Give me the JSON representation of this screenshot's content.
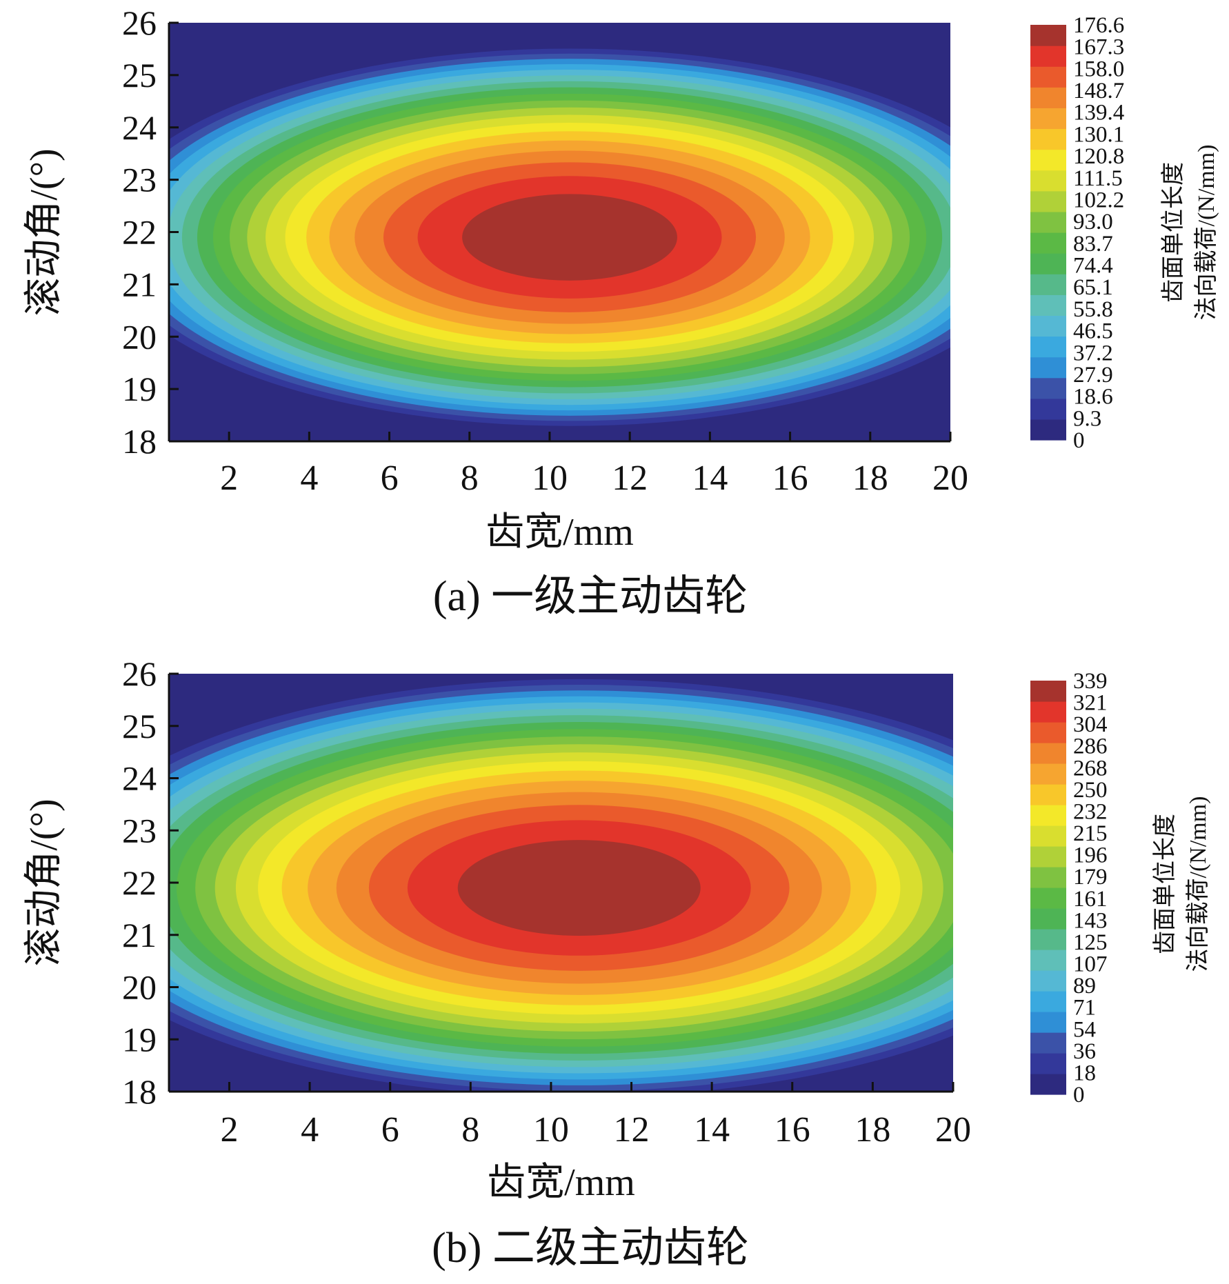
{
  "chart_data": [
    {
      "type": "heatmap",
      "panel": "(a)",
      "caption": "(a)  一级主动齿轮",
      "xlabel": "齿宽/mm",
      "ylabel": "滚动角/(°)",
      "x_ticks": [
        "2",
        "4",
        "6",
        "8",
        "10",
        "12",
        "14",
        "16",
        "18",
        "20"
      ],
      "y_ticks": [
        "18",
        "19",
        "20",
        "21",
        "22",
        "23",
        "24",
        "25",
        "26"
      ],
      "xlim": [
        0.5,
        20
      ],
      "ylim": [
        18,
        26
      ],
      "peak": {
        "x": 10.5,
        "y": 21.9,
        "value": 176.6
      },
      "spread": {
        "x": 12.0,
        "y": 3.7
      },
      "colorbar": {
        "title_lines": [
          "齿面单位长度",
          "法向载荷/(N/mm)"
        ],
        "levels": [
          "176.6",
          "167.3",
          "158.0",
          "148.7",
          "139.4",
          "130.1",
          "120.8",
          "111.5",
          "102.2",
          "93.0",
          "83.7",
          "74.4",
          "65.1",
          "55.8",
          "46.5",
          "37.2",
          "27.9",
          "18.6",
          "9.3",
          "0"
        ],
        "min": 0,
        "max": 176.6
      }
    },
    {
      "type": "heatmap",
      "panel": "(b)",
      "caption": "(b)  二级主动齿轮",
      "xlabel": "齿宽/mm",
      "ylabel": "滚动角/(°)",
      "x_ticks": [
        "2",
        "4",
        "6",
        "8",
        "10",
        "12",
        "14",
        "16",
        "18",
        "20"
      ],
      "y_ticks": [
        "18",
        "19",
        "20",
        "21",
        "22",
        "23",
        "24",
        "25",
        "26"
      ],
      "xlim": [
        0.5,
        20
      ],
      "ylim": [
        18,
        26
      ],
      "peak": {
        "x": 10.7,
        "y": 21.9,
        "value": 339
      },
      "spread": {
        "x": 13.5,
        "y": 4.1
      },
      "colorbar": {
        "title_lines": [
          "齿面单位长度",
          "法向载荷/(N/mm)"
        ],
        "levels": [
          "339",
          "321",
          "304",
          "286",
          "268",
          "250",
          "232",
          "215",
          "196",
          "179",
          "161",
          "143",
          "125",
          "107",
          "89",
          "71",
          "54",
          "36",
          "18",
          "0"
        ],
        "min": 0,
        "max": 339
      }
    }
  ],
  "palette": [
    "#2d2a7f",
    "#33389a",
    "#3b52a8",
    "#2f8fd6",
    "#3aa9df",
    "#55b8d4",
    "#5fbfb8",
    "#56b98a",
    "#4eb455",
    "#5bb945",
    "#7fc241",
    "#b0d138",
    "#d9de2f",
    "#f3e829",
    "#f8c72a",
    "#f6a530",
    "#f0852d",
    "#ea5a2c",
    "#e2352b",
    "#a6332d"
  ]
}
